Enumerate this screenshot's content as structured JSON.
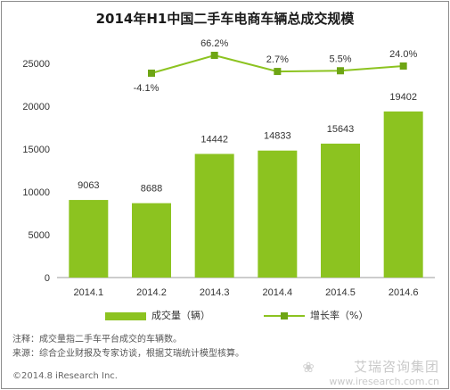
{
  "title": "2014年H1中国二手车电商车辆总成交规模",
  "chart_data": {
    "type": "bar",
    "categories": [
      "2014.1",
      "2014.2",
      "2014.3",
      "2014.4",
      "2014.5",
      "2014.6"
    ],
    "series": [
      {
        "name": "成交量（辆）",
        "type": "bar",
        "axis": "left",
        "values": [
          9063,
          8688,
          14442,
          14833,
          15643,
          19402
        ]
      },
      {
        "name": "增长率（%）",
        "type": "line",
        "axis": "right",
        "values": [
          null,
          -4.1,
          66.2,
          2.7,
          5.5,
          24.0
        ]
      }
    ],
    "growth_labels": [
      "",
      "-4.1%",
      "66.2%",
      "2.7%",
      "5.5%",
      "24.0%"
    ],
    "yticks": [
      0,
      5000,
      10000,
      15000,
      20000,
      25000
    ],
    "ylim": [
      0,
      27000
    ],
    "colors": {
      "bar": "#8cc320",
      "line": "#8cc320",
      "marker": "#6ea514"
    }
  },
  "legend": {
    "bar_label": "成交量（辆）",
    "line_label": "增长率（%）"
  },
  "notes": {
    "line1": "注释：成交量指二手车平台成交的车辆数。",
    "line2": "来源：综合企业财报及专家访谈，根据艾瑞统计模型核算。"
  },
  "footer": {
    "copyright": "©2014.8 iResearch Inc."
  },
  "watermark": {
    "main": "艾瑞咨询集团",
    "sub": "www.iresearch.com.cn"
  }
}
